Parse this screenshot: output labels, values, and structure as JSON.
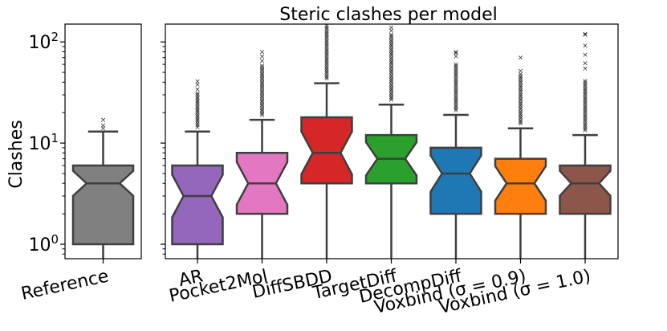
{
  "chart_data": {
    "type": "boxplot",
    "title": "Steric clashes per model",
    "ylabel": "Clashes",
    "yscale": "log",
    "ylim": [
      0.72,
      150
    ],
    "yticks": [
      {
        "value": 1,
        "base": "10",
        "exp": "0"
      },
      {
        "value": 10,
        "base": "10",
        "exp": "1"
      },
      {
        "value": 100,
        "base": "10",
        "exp": "2"
      }
    ],
    "notched": true,
    "panels": [
      {
        "name": "reference",
        "boxes": [
          {
            "label": "Reference",
            "color": "#808080",
            "whislo": 0.7,
            "q1": 1,
            "med": 4,
            "q3": 6,
            "whishi": 13,
            "fliers": [
              14,
              15,
              17
            ],
            "dense_fliers_to": 0
          }
        ]
      },
      {
        "name": "models",
        "boxes": [
          {
            "label": "AR",
            "color": "#9467bd",
            "whislo": 0.7,
            "q1": 1,
            "med": 3,
            "q3": 6,
            "whishi": 13,
            "fliers": [
              34,
              38,
              41
            ],
            "dense_fliers_to": 32
          },
          {
            "label": "Pocket2Mol",
            "color": "#e377c2",
            "whislo": 0.7,
            "q1": 2,
            "med": 4,
            "q3": 8,
            "whishi": 17,
            "fliers": [
              65,
              72,
              80
            ],
            "dense_fliers_to": 60
          },
          {
            "label": "DiffSBDD",
            "color": "#d62728",
            "whislo": 0.7,
            "q1": 4,
            "med": 8,
            "q3": 18,
            "whishi": 39,
            "fliers": [],
            "dense_fliers_to": 150
          },
          {
            "label": "TargetDiff",
            "color": "#2ca02c",
            "whislo": 0.7,
            "q1": 4,
            "med": 7,
            "q3": 12,
            "whishi": 24,
            "fliers": [
              130,
              140
            ],
            "dense_fliers_to": 120
          },
          {
            "label": "DecompDiff",
            "color": "#1f77b4",
            "whislo": 0.7,
            "q1": 2,
            "med": 5,
            "q3": 9,
            "whishi": 19,
            "fliers": [
              72,
              78,
              80
            ],
            "dense_fliers_to": 62
          },
          {
            "label": "Voxbind (σ = 0.9)",
            "color": "#ff7f0e",
            "whislo": 0.7,
            "q1": 2,
            "med": 4,
            "q3": 7,
            "whishi": 14,
            "fliers": [
              52,
              70
            ],
            "dense_fliers_to": 50
          },
          {
            "label": "Voxbind (σ = 1.0)",
            "color": "#8c564b",
            "whislo": 0.7,
            "q1": 2,
            "med": 4,
            "q3": 6,
            "whishi": 12,
            "fliers": [
              55,
              62,
              75,
              92,
              118,
              120
            ],
            "dense_fliers_to": 42
          }
        ]
      }
    ]
  }
}
